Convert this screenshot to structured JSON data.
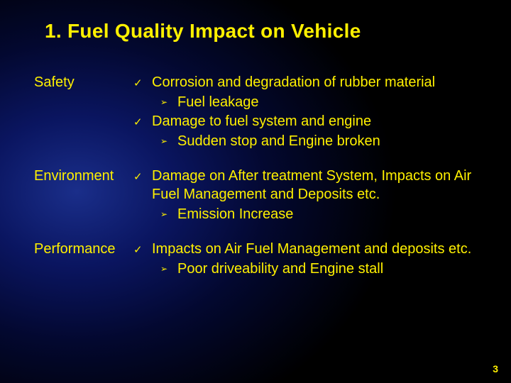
{
  "title": "1. Fuel Quality Impact on Vehicle",
  "page_number": "3",
  "style": {
    "text_color": "#fff000",
    "bg_gradient_inner": "#1a2e8a",
    "bg_gradient_outer": "#000000",
    "title_fontsize_pt": 21,
    "body_fontsize_pt": 15,
    "check_glyph": "✓",
    "arrow_glyph": "➢",
    "font_family": "Arial"
  },
  "sections": {
    "safety": {
      "label": "Safety",
      "item1": "Corrosion and degradation of rubber material",
      "item1_sub1": "Fuel leakage",
      "item2": "Damage to fuel system and engine",
      "item2_sub1": "Sudden stop and Engine broken"
    },
    "environment": {
      "label": "Environment",
      "item1": "Damage on After treatment System, Impacts on Air Fuel Management and Deposits etc.",
      "item1_sub1": "Emission Increase"
    },
    "performance": {
      "label": "Performance",
      "item1": "Impacts on Air Fuel Management and deposits etc.",
      "item1_sub1": "Poor driveability and Engine stall"
    }
  }
}
